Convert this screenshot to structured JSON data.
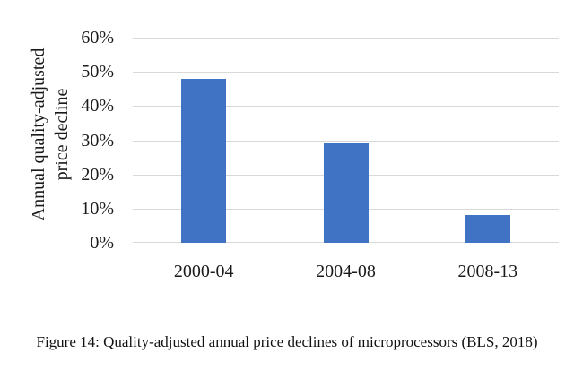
{
  "figure": {
    "caption": "Figure 14: Quality-adjusted annual price declines of microprocessors (BLS, 2018)"
  },
  "chart_data": {
    "type": "bar",
    "title": "",
    "categories": [
      "2000-04",
      "2004-08",
      "2008-13"
    ],
    "values": [
      48,
      29,
      8
    ],
    "value_unit": "%",
    "xlabel": "",
    "ylabel": "Annual quality-adjusted price decline",
    "ylabel_lines": [
      "Annual quality-adjusted",
      "price decline"
    ],
    "ylim": [
      0,
      60
    ],
    "ytick_step": 10,
    "ytick_labels": [
      "0%",
      "10%",
      "20%",
      "30%",
      "40%",
      "50%",
      "60%"
    ],
    "grid": true,
    "legend": false,
    "bar_color": "#4173C4",
    "gridline_color": "#D9D9D9",
    "text_color": "#1A1A1A"
  }
}
